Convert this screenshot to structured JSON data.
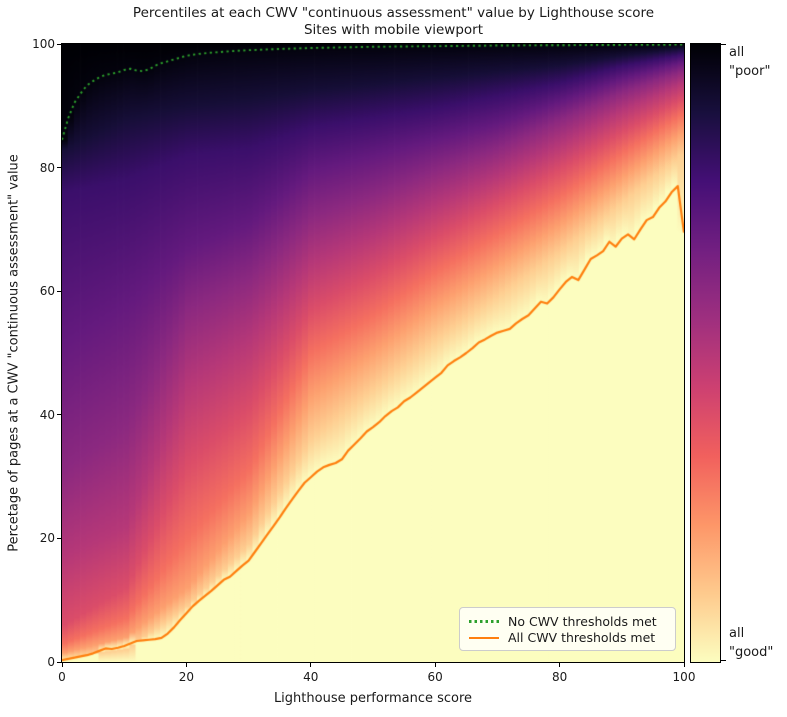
{
  "figure": {
    "background": "#ffffff",
    "text_color": "#1a1a1a"
  },
  "title": {
    "line1": "Percentiles at each CWV \"continuous assessment\" value by Lighthouse score",
    "line2": "Sites with mobile viewport"
  },
  "axes": {
    "xlabel": "Lighthouse performance score",
    "ylabel": "Percetage of pages at a CWV \"continuous assessment\" value",
    "x_ticks": [
      "0",
      "20",
      "40",
      "60",
      "80",
      "100"
    ],
    "y_ticks": [
      "0",
      "20",
      "40",
      "60",
      "80",
      "100"
    ],
    "xlim": [
      0,
      100
    ],
    "ylim": [
      0,
      100
    ],
    "grid": false
  },
  "legend": {
    "position": "lower right",
    "items": [
      {
        "label": "No CWV thresholds met",
        "color": "#2ca02c",
        "style": "dotted"
      },
      {
        "label": "All CWV thresholds met",
        "color": "#ff7f0e",
        "style": "solid"
      }
    ]
  },
  "colorbar": {
    "top_label_line1": "all",
    "top_label_line2": "\"poor\"",
    "bottom_label_line1": "all",
    "bottom_label_line2": "\"good\"",
    "colormap": "magma reversed vertically: black = all \"poor\" (top), pale yellow = all \"good\" (bottom)",
    "stops": [
      "#000004",
      "#180f3d",
      "#440f76",
      "#721f81",
      "#9e2f7f",
      "#cd4071",
      "#f1605d",
      "#fd9668",
      "#feca8d",
      "#fcfdbf"
    ]
  },
  "chart_data": {
    "type": "heatmap",
    "title": "Percentiles at each CWV \"continuous assessment\" value by Lighthouse score",
    "subtitle": "Sites with mobile viewport",
    "xlabel": "Lighthouse performance score",
    "ylabel": "Percetage of pages at a CWV \"continuous assessment\" value",
    "xlim": [
      0,
      100
    ],
    "ylim": [
      0,
      100
    ],
    "legend_position": "lower right",
    "series": [
      {
        "name": "No CWV thresholds met",
        "color": "#2ca02c",
        "style": "dotted",
        "points": [
          [
            0,
            84.5
          ],
          [
            1,
            88.0
          ],
          [
            2,
            90.5
          ],
          [
            3,
            92.0
          ],
          [
            4,
            93.3
          ],
          [
            5,
            94.0
          ],
          [
            6,
            94.6
          ],
          [
            7,
            95.0
          ],
          [
            8,
            95.2
          ],
          [
            9,
            95.4
          ],
          [
            10,
            95.8
          ],
          [
            11,
            96.0
          ],
          [
            12,
            95.7
          ],
          [
            13,
            95.6
          ],
          [
            14,
            95.9
          ],
          [
            15,
            96.5
          ],
          [
            16,
            96.9
          ],
          [
            17,
            97.2
          ],
          [
            18,
            97.5
          ],
          [
            19,
            97.8
          ],
          [
            20,
            98.1
          ],
          [
            22,
            98.4
          ],
          [
            24,
            98.6
          ],
          [
            26,
            98.75
          ],
          [
            28,
            98.9
          ],
          [
            30,
            99.0
          ],
          [
            35,
            99.2
          ],
          [
            40,
            99.35
          ],
          [
            45,
            99.45
          ],
          [
            50,
            99.55
          ],
          [
            60,
            99.65
          ],
          [
            70,
            99.75
          ],
          [
            80,
            99.8
          ],
          [
            90,
            99.85
          ],
          [
            100,
            99.9
          ]
        ]
      },
      {
        "name": "All CWV thresholds met",
        "color": "#ff7f0e",
        "style": "solid",
        "points": [
          [
            0,
            0.3
          ],
          [
            2,
            0.7
          ],
          [
            4,
            1.1
          ],
          [
            5,
            1.4
          ],
          [
            6,
            1.8
          ],
          [
            7,
            2.2
          ],
          [
            8,
            2.1
          ],
          [
            9,
            2.3
          ],
          [
            10,
            2.6
          ],
          [
            11,
            3.0
          ],
          [
            12,
            3.4
          ],
          [
            13,
            3.5
          ],
          [
            14,
            3.6
          ],
          [
            15,
            3.7
          ],
          [
            16,
            3.9
          ],
          [
            17,
            4.6
          ],
          [
            18,
            5.6
          ],
          [
            19,
            6.8
          ],
          [
            20,
            7.9
          ],
          [
            21,
            9.0
          ],
          [
            22,
            9.9
          ],
          [
            23,
            10.7
          ],
          [
            24,
            11.5
          ],
          [
            25,
            12.4
          ],
          [
            26,
            13.3
          ],
          [
            27,
            13.8
          ],
          [
            28,
            14.7
          ],
          [
            29,
            15.6
          ],
          [
            30,
            16.4
          ],
          [
            31,
            17.8
          ],
          [
            32,
            19.2
          ],
          [
            33,
            20.6
          ],
          [
            34,
            22.0
          ],
          [
            35,
            23.4
          ],
          [
            36,
            24.9
          ],
          [
            37,
            26.3
          ],
          [
            38,
            27.7
          ],
          [
            39,
            29.0
          ],
          [
            40,
            29.9
          ],
          [
            41,
            30.8
          ],
          [
            42,
            31.5
          ],
          [
            43,
            31.9
          ],
          [
            44,
            32.2
          ],
          [
            45,
            32.8
          ],
          [
            46,
            34.2
          ],
          [
            47,
            35.2
          ],
          [
            48,
            36.2
          ],
          [
            49,
            37.3
          ],
          [
            50,
            38.0
          ],
          [
            51,
            38.8
          ],
          [
            52,
            39.8
          ],
          [
            53,
            40.6
          ],
          [
            54,
            41.2
          ],
          [
            55,
            42.2
          ],
          [
            56,
            42.8
          ],
          [
            57,
            43.6
          ],
          [
            58,
            44.4
          ],
          [
            59,
            45.2
          ],
          [
            60,
            46.0
          ],
          [
            61,
            46.8
          ],
          [
            62,
            48.0
          ],
          [
            63,
            48.7
          ],
          [
            64,
            49.3
          ],
          [
            65,
            50.0
          ],
          [
            66,
            50.8
          ],
          [
            67,
            51.7
          ],
          [
            68,
            52.2
          ],
          [
            69,
            52.8
          ],
          [
            70,
            53.3
          ],
          [
            71,
            53.6
          ],
          [
            72,
            53.9
          ],
          [
            73,
            54.8
          ],
          [
            74,
            55.5
          ],
          [
            75,
            56.1
          ],
          [
            76,
            57.2
          ],
          [
            77,
            58.3
          ],
          [
            78,
            58.0
          ],
          [
            79,
            59.0
          ],
          [
            80,
            60.3
          ],
          [
            81,
            61.5
          ],
          [
            82,
            62.3
          ],
          [
            83,
            61.8
          ],
          [
            84,
            63.5
          ],
          [
            85,
            65.2
          ],
          [
            86,
            65.8
          ],
          [
            87,
            66.5
          ],
          [
            88,
            68.0
          ],
          [
            89,
            67.2
          ],
          [
            90,
            68.5
          ],
          [
            91,
            69.2
          ],
          [
            92,
            68.4
          ],
          [
            93,
            70.0
          ],
          [
            94,
            71.5
          ],
          [
            95,
            72.0
          ],
          [
            96,
            73.5
          ],
          [
            97,
            74.5
          ],
          [
            98,
            76.0
          ],
          [
            99,
            77.0
          ],
          [
            100,
            69.5
          ]
        ]
      }
    ],
    "heatmap_field": {
      "description": "Percentile (y) at which the CWV continuous-assessment value reaches each level, per Lighthouse score (x). Level 1.0 = all thresholds good (pale yellow, below the orange line); level 0.0 = no thresholds met / all poor (black, above the green dotted line).",
      "scores": [
        0,
        10,
        20,
        30,
        40,
        50,
        60,
        70,
        80,
        90,
        100
      ],
      "iso_value_curves": [
        {
          "value": 0.9,
          "pct": [
            0.8,
            2,
            9,
            19,
            36,
            44,
            52,
            59,
            66,
            74,
            82
          ]
        },
        {
          "value": 0.8,
          "pct": [
            1.5,
            4,
            12,
            24,
            43,
            50,
            57.5,
            64,
            70.5,
            78,
            85.5
          ]
        },
        {
          "value": 0.7,
          "pct": [
            3,
            7,
            20,
            31,
            50,
            56,
            63,
            69,
            75,
            82,
            88.5
          ]
        },
        {
          "value": 0.6,
          "pct": [
            6,
            12,
            32,
            41,
            57,
            62.5,
            68.5,
            74,
            79.5,
            85.5,
            91
          ]
        },
        {
          "value": 0.5,
          "pct": [
            17,
            22,
            45,
            52,
            64.5,
            69,
            74,
            78.5,
            83.5,
            89,
            93.5
          ]
        },
        {
          "value": 0.4,
          "pct": [
            31,
            38,
            57,
            62,
            72,
            75.5,
            79.5,
            83,
            87.5,
            92,
            95.5
          ]
        },
        {
          "value": 0.3,
          "pct": [
            52,
            58,
            67,
            71,
            79.5,
            82,
            84.5,
            87,
            90.5,
            94.2,
            97
          ]
        },
        {
          "value": 0.2,
          "pct": [
            76,
            78,
            82,
            83,
            86.5,
            88,
            89.5,
            91.5,
            93.5,
            96.3,
            98.2
          ]
        },
        {
          "value": 0.1,
          "pct": [
            83,
            88,
            90,
            91,
            92.5,
            93.5,
            94.5,
            95.5,
            96.5,
            98,
            99.2
          ]
        }
      ]
    }
  }
}
